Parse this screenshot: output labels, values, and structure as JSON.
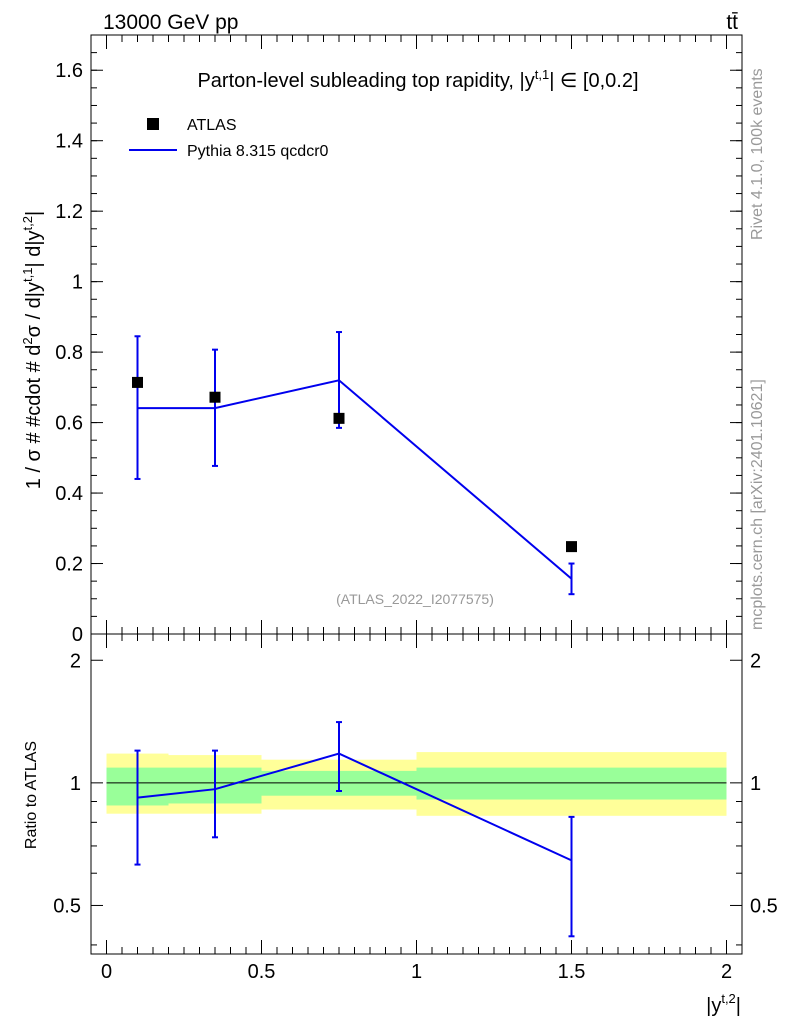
{
  "header": {
    "energy_label": "13000 GeV pp",
    "process_label": "tt̄"
  },
  "side_labels": {
    "rivet": "Rivet 4.1.0,  100k events",
    "source": "mcplots.cern.ch [arXiv:2401.10621]"
  },
  "chart_data": {
    "type": "line",
    "title": "Parton-level subleading top rapidity, |y^{t,1}| ∈ [0,0.2]",
    "title_parts": {
      "main": "Parton-level subleading top rapidity, |y",
      "sup": "t,1",
      "tail": "| ∈ [0,0.2]"
    },
    "ylabel": "1 / σ # #cdot # d²σ / d|y^{t,1}| d|y^{t,2}|",
    "ylabel_parts": {
      "a": "1 / σ # #cdot # d",
      "b": "2",
      "c": "σ / d|y",
      "d": "t,1",
      "e": "| d|y",
      "f": "t,2",
      "g": "|"
    },
    "xlabel": "|y^{t,2}|",
    "xlabel_parts": {
      "a": "|y",
      "b": "t,2",
      "c": "|"
    },
    "watermark": "(ATLAS_2022_I2077575)",
    "xlim": [
      -0.05,
      2.05
    ],
    "ylim": [
      0,
      1.7
    ],
    "x_ticks": [
      "0",
      "0.5",
      "1",
      "1.5",
      "2"
    ],
    "y_ticks": [
      "0",
      "0.2",
      "0.4",
      "0.6",
      "0.8",
      "1",
      "1.2",
      "1.4",
      "1.6"
    ],
    "legend": [
      {
        "name": "ATLAS",
        "marker": "square",
        "color": "#000000"
      },
      {
        "name": "Pythia 8.315 qcdcr0",
        "marker": "line",
        "color": "#0000ee"
      }
    ],
    "bins": [
      [
        0,
        0.2
      ],
      [
        0.2,
        0.5
      ],
      [
        0.5,
        1.0
      ],
      [
        1.0,
        2.0
      ]
    ],
    "series": [
      {
        "name": "ATLAS",
        "x": [
          0.1,
          0.35,
          0.75,
          1.5
        ],
        "y": [
          0.714,
          0.672,
          0.612,
          0.248
        ]
      },
      {
        "name": "Pythia 8.315 qcdcr0",
        "x": [
          0.1,
          0.35,
          0.75,
          1.5
        ],
        "y": [
          0.641,
          0.641,
          0.72,
          0.157
        ],
        "yerr_low": [
          0.44,
          0.477,
          0.585,
          0.113
        ],
        "yerr_high": [
          0.845,
          0.807,
          0.857,
          0.2
        ]
      }
    ],
    "ratio": {
      "ylabel": "Ratio to ATLAS",
      "ylim": [
        0.38,
        2.32
      ],
      "y_ticks_left": [
        "0.5",
        "1",
        "2"
      ],
      "y_ticks_right": [
        "0.5",
        "1",
        "2"
      ],
      "band_stat": {
        "color": "#99ff99",
        "low": [
          0.88,
          0.89,
          0.93,
          0.91
        ],
        "high": [
          1.09,
          1.09,
          1.07,
          1.09
        ]
      },
      "band_total": {
        "color": "#ffff99",
        "low": [
          0.84,
          0.84,
          0.86,
          0.83
        ],
        "high": [
          1.18,
          1.17,
          1.14,
          1.19
        ]
      },
      "mc": {
        "x": [
          0.1,
          0.35,
          0.75,
          1.5
        ],
        "y": [
          0.92,
          0.965,
          1.18,
          0.645
        ],
        "err_low": [
          0.63,
          0.735,
          0.955,
          0.42
        ],
        "err_high": [
          1.2,
          1.2,
          1.41,
          0.825
        ]
      }
    }
  }
}
